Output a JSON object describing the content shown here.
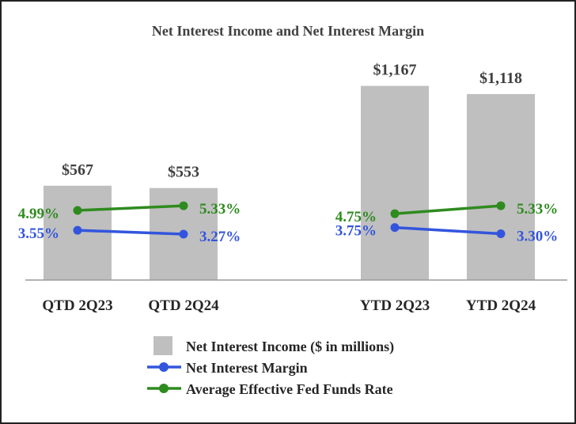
{
  "chart_data": {
    "type": "bar",
    "title": "Net Interest Income and Net Interest Margin",
    "categories": [
      "QTD 2Q23",
      "QTD 2Q24",
      "YTD 2Q23",
      "YTD 2Q24"
    ],
    "groups": [
      [
        "QTD 2Q23",
        "QTD 2Q24"
      ],
      [
        "YTD 2Q23",
        "YTD 2Q24"
      ]
    ],
    "series": [
      {
        "name": "Net Interest Income ($ in millions)",
        "kind": "bar",
        "color": "#BFBFBF",
        "values": [
          567,
          553,
          1167,
          1118
        ],
        "labels": [
          "$567",
          "$553",
          "$1,167",
          "$1,118"
        ]
      },
      {
        "name": "Net Interest Margin",
        "kind": "line",
        "color": "#3355DD",
        "values": [
          3.55,
          3.27,
          3.75,
          3.3
        ],
        "labels": [
          "3.55%",
          "3.27%",
          "3.75%",
          "3.30%"
        ]
      },
      {
        "name": "Average Effective Fed Funds Rate",
        "kind": "line",
        "color": "#2E8B1E",
        "values": [
          4.99,
          5.33,
          4.75,
          5.33
        ],
        "labels": [
          "4.99%",
          "5.33%",
          "4.75%",
          "5.33%"
        ]
      }
    ],
    "legend_position": "bottom",
    "grid": false
  }
}
